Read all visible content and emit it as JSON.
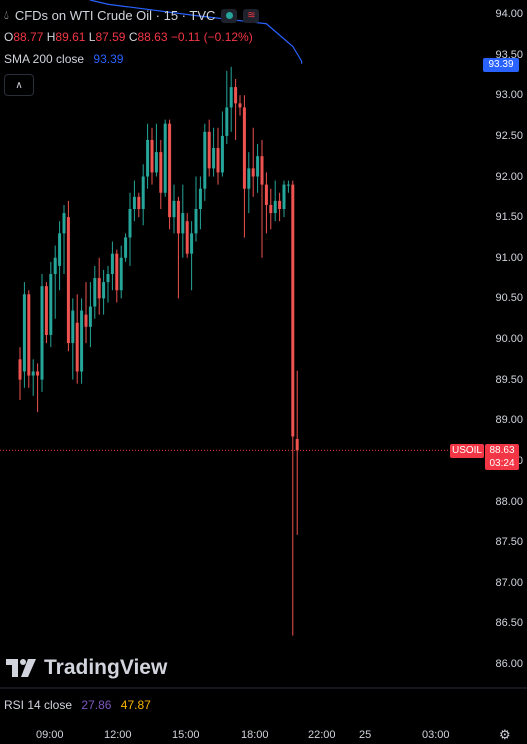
{
  "header": {
    "title": "CFDs on WTI Crude Oil · 15 · TVC",
    "o_label": "O",
    "o_val": "88.77",
    "h_label": "H",
    "h_val": "89.61",
    "l_label": "L",
    "l_val": "87.59",
    "c_label": "C",
    "c_val": "88.63",
    "change": "−0.11 (−0.12%)",
    "sma_label": "SMA 200 close",
    "sma_val": "93.39"
  },
  "logo_text": "TradingView",
  "rsi": {
    "label": "RSI 14 close",
    "v1": "27.86",
    "v2": "47.87"
  },
  "price_tag": {
    "symbol": "USOIL",
    "price": "88.63",
    "countdown": "03:24"
  },
  "sma_tag": "93.39",
  "colors": {
    "up": "#26a69a",
    "down": "#ef5350",
    "sma": "#2962ff",
    "bg": "#000000"
  },
  "icons": [
    "drop-icon",
    "indicator-dot-icon",
    "wave-icon",
    "chevron-up-icon",
    "gear-icon"
  ],
  "chart_data": {
    "type": "candlestick",
    "y_ticks": [
      "94.00",
      "93.50",
      "93.00",
      "92.50",
      "92.00",
      "91.50",
      "91.00",
      "90.50",
      "90.00",
      "89.50",
      "89.00",
      "88.50",
      "88.00",
      "87.50",
      "87.00",
      "86.50",
      "86.00"
    ],
    "x_ticks": [
      "09:00",
      "12:00",
      "15:00",
      "18:00",
      "22:00",
      "25",
      "03:00"
    ],
    "ylim": [
      85.7,
      94.1
    ],
    "current_price": 88.63,
    "sma_last": 93.39,
    "candles": [
      {
        "o": 89.75,
        "h": 89.9,
        "l": 89.25,
        "c": 89.5
      },
      {
        "o": 89.6,
        "h": 90.7,
        "l": 89.4,
        "c": 90.55
      },
      {
        "o": 90.55,
        "h": 90.6,
        "l": 89.4,
        "c": 89.55
      },
      {
        "o": 89.55,
        "h": 89.75,
        "l": 89.3,
        "c": 89.6
      },
      {
        "o": 89.6,
        "h": 89.7,
        "l": 89.1,
        "c": 89.55
      },
      {
        "o": 89.5,
        "h": 90.8,
        "l": 89.35,
        "c": 90.65
      },
      {
        "o": 90.65,
        "h": 90.7,
        "l": 89.95,
        "c": 90.05
      },
      {
        "o": 90.05,
        "h": 90.95,
        "l": 89.9,
        "c": 90.8
      },
      {
        "o": 90.8,
        "h": 91.15,
        "l": 90.25,
        "c": 91.0
      },
      {
        "o": 90.9,
        "h": 91.45,
        "l": 90.6,
        "c": 91.3
      },
      {
        "o": 91.3,
        "h": 91.65,
        "l": 90.8,
        "c": 91.55
      },
      {
        "o": 91.5,
        "h": 91.7,
        "l": 89.85,
        "c": 89.95
      },
      {
        "o": 89.95,
        "h": 90.5,
        "l": 89.5,
        "c": 90.35
      },
      {
        "o": 90.2,
        "h": 90.55,
        "l": 89.45,
        "c": 89.6
      },
      {
        "o": 89.6,
        "h": 90.5,
        "l": 89.45,
        "c": 90.35
      },
      {
        "o": 90.3,
        "h": 90.7,
        "l": 89.95,
        "c": 90.15
      },
      {
        "o": 90.15,
        "h": 90.7,
        "l": 89.9,
        "c": 90.4
      },
      {
        "o": 90.4,
        "h": 90.9,
        "l": 90.25,
        "c": 90.75
      },
      {
        "o": 90.75,
        "h": 91.0,
        "l": 90.3,
        "c": 90.5
      },
      {
        "o": 90.5,
        "h": 90.85,
        "l": 90.3,
        "c": 90.7
      },
      {
        "o": 90.7,
        "h": 90.9,
        "l": 90.45,
        "c": 90.8
      },
      {
        "o": 90.8,
        "h": 91.2,
        "l": 90.6,
        "c": 91.05
      },
      {
        "o": 91.05,
        "h": 91.1,
        "l": 90.45,
        "c": 90.6
      },
      {
        "o": 90.6,
        "h": 91.15,
        "l": 90.5,
        "c": 91.0
      },
      {
        "o": 91.0,
        "h": 91.3,
        "l": 90.95,
        "c": 91.25
      },
      {
        "o": 91.25,
        "h": 91.8,
        "l": 90.9,
        "c": 91.6
      },
      {
        "o": 91.6,
        "h": 91.95,
        "l": 91.45,
        "c": 91.75
      },
      {
        "o": 91.75,
        "h": 91.8,
        "l": 91.5,
        "c": 91.6
      },
      {
        "o": 91.6,
        "h": 92.15,
        "l": 91.4,
        "c": 92.0
      },
      {
        "o": 92.0,
        "h": 92.65,
        "l": 91.85,
        "c": 92.45
      },
      {
        "o": 92.45,
        "h": 92.6,
        "l": 91.9,
        "c": 92.05
      },
      {
        "o": 92.05,
        "h": 92.65,
        "l": 92.0,
        "c": 92.3
      },
      {
        "o": 92.3,
        "h": 92.45,
        "l": 91.6,
        "c": 91.8
      },
      {
        "o": 91.8,
        "h": 92.7,
        "l": 91.75,
        "c": 92.65
      },
      {
        "o": 92.65,
        "h": 92.7,
        "l": 91.35,
        "c": 91.5
      },
      {
        "o": 91.5,
        "h": 91.9,
        "l": 91.3,
        "c": 91.7
      },
      {
        "o": 91.7,
        "h": 91.75,
        "l": 90.5,
        "c": 91.3
      },
      {
        "o": 91.3,
        "h": 91.9,
        "l": 91.0,
        "c": 91.55
      },
      {
        "o": 91.45,
        "h": 91.55,
        "l": 91.0,
        "c": 91.05
      },
      {
        "o": 91.05,
        "h": 91.45,
        "l": 90.6,
        "c": 91.3
      },
      {
        "o": 91.3,
        "h": 92.0,
        "l": 91.2,
        "c": 91.6
      },
      {
        "o": 91.6,
        "h": 92.0,
        "l": 91.35,
        "c": 91.85
      },
      {
        "o": 91.85,
        "h": 92.65,
        "l": 91.7,
        "c": 92.55
      },
      {
        "o": 92.55,
        "h": 92.7,
        "l": 92.0,
        "c": 92.1
      },
      {
        "o": 92.1,
        "h": 92.6,
        "l": 92.0,
        "c": 92.35
      },
      {
        "o": 92.35,
        "h": 92.6,
        "l": 91.9,
        "c": 92.05
      },
      {
        "o": 92.05,
        "h": 92.8,
        "l": 92.0,
        "c": 92.5
      },
      {
        "o": 92.5,
        "h": 93.3,
        "l": 92.4,
        "c": 92.85
      },
      {
        "o": 92.85,
        "h": 93.35,
        "l": 92.55,
        "c": 93.1
      },
      {
        "o": 93.1,
        "h": 93.2,
        "l": 92.45,
        "c": 92.9
      },
      {
        "o": 92.9,
        "h": 93.0,
        "l": 92.75,
        "c": 92.85
      },
      {
        "o": 92.85,
        "h": 93.0,
        "l": 91.25,
        "c": 91.85
      },
      {
        "o": 91.85,
        "h": 92.3,
        "l": 91.55,
        "c": 92.1
      },
      {
        "o": 92.1,
        "h": 92.6,
        "l": 91.75,
        "c": 92.0
      },
      {
        "o": 92.0,
        "h": 92.4,
        "l": 91.8,
        "c": 92.25
      },
      {
        "o": 92.25,
        "h": 92.45,
        "l": 91.0,
        "c": 91.9
      },
      {
        "o": 91.9,
        "h": 92.05,
        "l": 91.3,
        "c": 91.65
      },
      {
        "o": 91.65,
        "h": 91.85,
        "l": 91.35,
        "c": 91.55
      },
      {
        "o": 91.55,
        "h": 91.95,
        "l": 91.45,
        "c": 91.7
      },
      {
        "o": 91.7,
        "h": 91.8,
        "l": 91.45,
        "c": 91.6
      },
      {
        "o": 91.6,
        "h": 91.95,
        "l": 91.5,
        "c": 91.9
      },
      {
        "o": 91.9,
        "h": 91.95,
        "l": 91.8,
        "c": 91.9
      },
      {
        "o": 91.9,
        "h": 91.95,
        "l": 86.35,
        "c": 88.8
      },
      {
        "o": 88.77,
        "h": 89.61,
        "l": 87.59,
        "c": 88.63
      }
    ],
    "sma_points": [
      [
        0,
        94.2
      ],
      [
        20,
        94.12
      ],
      [
        40,
        93.98
      ],
      [
        56,
        93.88
      ],
      [
        62,
        93.6
      ],
      [
        64,
        93.42
      ],
      [
        64,
        93.39
      ]
    ]
  }
}
